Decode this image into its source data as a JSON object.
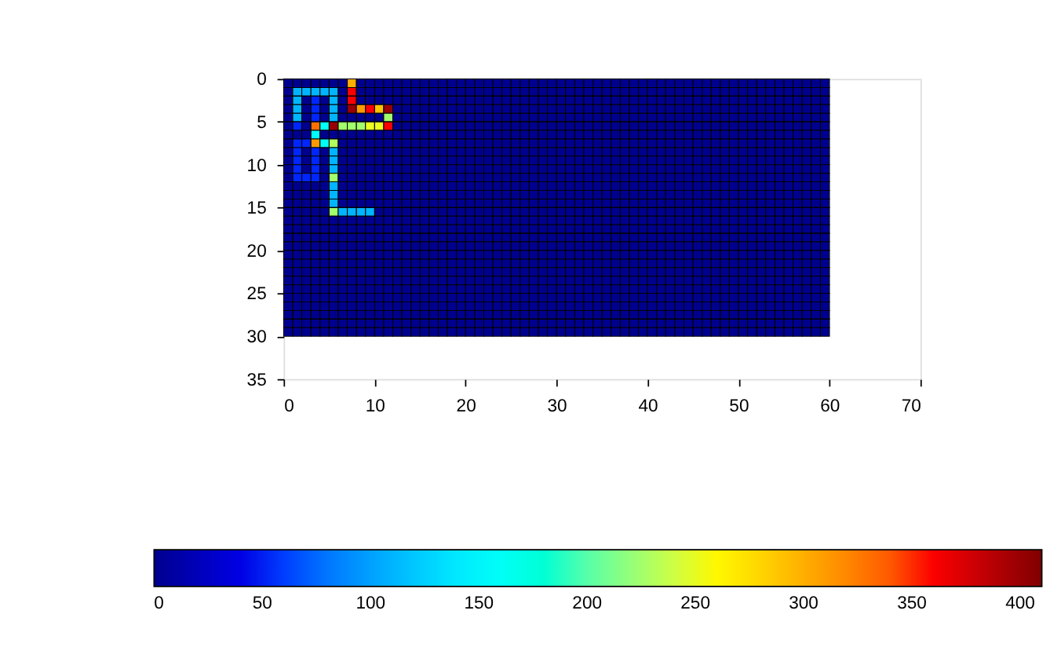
{
  "chart_data": {
    "type": "heatmap",
    "x": [
      0.5,
      1.5,
      2.5,
      3.5,
      4.5,
      5.5,
      6.5,
      7.5,
      8.5,
      9.5,
      10.5,
      11.5,
      12.5,
      13.5,
      14.5,
      15.5,
      16.5,
      17.5,
      18.5,
      19.5,
      20.5,
      21.5,
      22.5,
      23.5,
      24.5,
      25.5,
      26.5,
      27.5,
      28.5,
      29.5,
      30.5,
      31.5,
      32.5,
      33.5,
      34.5,
      35.5,
      36.5,
      37.5,
      38.5,
      39.5,
      40.5,
      41.5,
      42.5,
      43.5,
      44.5,
      45.5,
      46.5,
      47.5,
      48.5,
      49.5,
      50.5,
      51.5,
      52.5,
      53.5,
      54.5,
      55.5,
      56.5,
      57.5,
      58.5,
      59.5
    ],
    "y": [
      0.5,
      1.5,
      2.5,
      3.5,
      4.5,
      5.5,
      6.5,
      7.5,
      8.5,
      9.5,
      10.5,
      11.5,
      12.5,
      13.5,
      14.5,
      15.5,
      16.5,
      17.5,
      18.5,
      19.5,
      20.5,
      21.5,
      22.5,
      23.5,
      24.5,
      25.5,
      26.5,
      27.5,
      28.5,
      29.5
    ],
    "cells": [
      [
        0,
        0,
        0,
        0,
        0,
        0,
        0,
        300,
        0,
        0,
        0,
        0,
        0,
        0,
        0,
        0,
        0,
        0,
        0,
        0,
        0,
        0,
        0,
        0,
        0,
        0,
        0,
        0,
        0,
        0,
        0,
        0,
        0,
        0,
        0,
        0,
        0,
        0,
        0,
        0,
        0,
        0,
        0,
        0,
        0,
        0,
        0,
        0,
        0,
        0,
        0,
        0,
        0,
        0,
        0,
        0,
        0,
        0,
        0,
        0
      ],
      [
        0,
        110,
        110,
        110,
        110,
        110,
        0,
        360,
        0,
        0,
        0,
        0,
        0,
        0,
        0,
        0,
        0,
        0,
        0,
        0,
        0,
        0,
        0,
        0,
        0,
        0,
        0,
        0,
        0,
        0,
        0,
        0,
        0,
        0,
        0,
        0,
        0,
        0,
        0,
        0,
        0,
        0,
        0,
        0,
        0,
        0,
        0,
        0,
        0,
        0,
        0,
        0,
        0,
        0,
        0,
        0,
        0,
        0,
        0,
        0
      ],
      [
        0,
        110,
        0,
        55,
        0,
        110,
        0,
        360,
        0,
        0,
        0,
        0,
        0,
        0,
        0,
        0,
        0,
        0,
        0,
        0,
        0,
        0,
        0,
        0,
        0,
        0,
        0,
        0,
        0,
        0,
        0,
        0,
        0,
        0,
        0,
        0,
        0,
        0,
        0,
        0,
        0,
        0,
        0,
        0,
        0,
        0,
        0,
        0,
        0,
        0,
        0,
        0,
        0,
        0,
        0,
        0,
        0,
        0,
        0,
        0
      ],
      [
        0,
        110,
        0,
        55,
        0,
        110,
        0,
        400,
        310,
        360,
        290,
        400,
        0,
        0,
        0,
        0,
        0,
        0,
        0,
        0,
        0,
        0,
        0,
        0,
        0,
        0,
        0,
        0,
        0,
        0,
        0,
        0,
        0,
        0,
        0,
        0,
        0,
        0,
        0,
        0,
        0,
        0,
        0,
        0,
        0,
        0,
        0,
        0,
        0,
        0,
        0,
        0,
        0,
        0,
        0,
        0,
        0,
        0,
        0,
        0
      ],
      [
        0,
        110,
        0,
        55,
        0,
        110,
        0,
        0,
        0,
        0,
        0,
        225,
        0,
        0,
        0,
        0,
        0,
        0,
        0,
        0,
        0,
        0,
        0,
        0,
        0,
        0,
        0,
        0,
        0,
        0,
        0,
        0,
        0,
        0,
        0,
        0,
        0,
        0,
        0,
        0,
        0,
        0,
        0,
        0,
        0,
        0,
        0,
        0,
        0,
        0,
        0,
        0,
        0,
        0,
        0,
        0,
        0,
        0,
        0,
        0
      ],
      [
        0,
        55,
        0,
        330,
        160,
        400,
        225,
        225,
        225,
        250,
        250,
        360,
        0,
        0,
        0,
        0,
        0,
        0,
        0,
        0,
        0,
        0,
        0,
        0,
        0,
        0,
        0,
        0,
        0,
        0,
        0,
        0,
        0,
        0,
        0,
        0,
        0,
        0,
        0,
        0,
        0,
        0,
        0,
        0,
        0,
        0,
        0,
        0,
        0,
        0,
        0,
        0,
        0,
        0,
        0,
        0,
        0,
        0,
        0,
        0
      ],
      [
        0,
        0,
        0,
        160,
        0,
        0,
        0,
        0,
        0,
        0,
        0,
        0,
        0,
        0,
        0,
        0,
        0,
        0,
        0,
        0,
        0,
        0,
        0,
        0,
        0,
        0,
        0,
        0,
        0,
        0,
        0,
        0,
        0,
        0,
        0,
        0,
        0,
        0,
        0,
        0,
        0,
        0,
        0,
        0,
        0,
        0,
        0,
        0,
        0,
        0,
        0,
        0,
        0,
        0,
        0,
        0,
        0,
        0,
        0,
        0
      ],
      [
        0,
        55,
        55,
        310,
        160,
        230,
        0,
        0,
        0,
        0,
        0,
        0,
        0,
        0,
        0,
        0,
        0,
        0,
        0,
        0,
        0,
        0,
        0,
        0,
        0,
        0,
        0,
        0,
        0,
        0,
        0,
        0,
        0,
        0,
        0,
        0,
        0,
        0,
        0,
        0,
        0,
        0,
        0,
        0,
        0,
        0,
        0,
        0,
        0,
        0,
        0,
        0,
        0,
        0,
        0,
        0,
        0,
        0,
        0,
        0
      ],
      [
        0,
        55,
        0,
        55,
        0,
        110,
        0,
        0,
        0,
        0,
        0,
        0,
        0,
        0,
        0,
        0,
        0,
        0,
        0,
        0,
        0,
        0,
        0,
        0,
        0,
        0,
        0,
        0,
        0,
        0,
        0,
        0,
        0,
        0,
        0,
        0,
        0,
        0,
        0,
        0,
        0,
        0,
        0,
        0,
        0,
        0,
        0,
        0,
        0,
        0,
        0,
        0,
        0,
        0,
        0,
        0,
        0,
        0,
        0,
        0
      ],
      [
        0,
        55,
        0,
        55,
        0,
        110,
        0,
        0,
        0,
        0,
        0,
        0,
        0,
        0,
        0,
        0,
        0,
        0,
        0,
        0,
        0,
        0,
        0,
        0,
        0,
        0,
        0,
        0,
        0,
        0,
        0,
        0,
        0,
        0,
        0,
        0,
        0,
        0,
        0,
        0,
        0,
        0,
        0,
        0,
        0,
        0,
        0,
        0,
        0,
        0,
        0,
        0,
        0,
        0,
        0,
        0,
        0,
        0,
        0,
        0
      ],
      [
        0,
        55,
        0,
        55,
        0,
        110,
        0,
        0,
        0,
        0,
        0,
        0,
        0,
        0,
        0,
        0,
        0,
        0,
        0,
        0,
        0,
        0,
        0,
        0,
        0,
        0,
        0,
        0,
        0,
        0,
        0,
        0,
        0,
        0,
        0,
        0,
        0,
        0,
        0,
        0,
        0,
        0,
        0,
        0,
        0,
        0,
        0,
        0,
        0,
        0,
        0,
        0,
        0,
        0,
        0,
        0,
        0,
        0,
        0,
        0
      ],
      [
        0,
        55,
        55,
        55,
        0,
        225,
        0,
        0,
        0,
        0,
        0,
        0,
        0,
        0,
        0,
        0,
        0,
        0,
        0,
        0,
        0,
        0,
        0,
        0,
        0,
        0,
        0,
        0,
        0,
        0,
        0,
        0,
        0,
        0,
        0,
        0,
        0,
        0,
        0,
        0,
        0,
        0,
        0,
        0,
        0,
        0,
        0,
        0,
        0,
        0,
        0,
        0,
        0,
        0,
        0,
        0,
        0,
        0,
        0,
        0
      ],
      [
        0,
        0,
        0,
        0,
        0,
        110,
        0,
        0,
        0,
        0,
        0,
        0,
        0,
        0,
        0,
        0,
        0,
        0,
        0,
        0,
        0,
        0,
        0,
        0,
        0,
        0,
        0,
        0,
        0,
        0,
        0,
        0,
        0,
        0,
        0,
        0,
        0,
        0,
        0,
        0,
        0,
        0,
        0,
        0,
        0,
        0,
        0,
        0,
        0,
        0,
        0,
        0,
        0,
        0,
        0,
        0,
        0,
        0,
        0,
        0
      ],
      [
        0,
        0,
        0,
        0,
        0,
        110,
        0,
        0,
        0,
        0,
        0,
        0,
        0,
        0,
        0,
        0,
        0,
        0,
        0,
        0,
        0,
        0,
        0,
        0,
        0,
        0,
        0,
        0,
        0,
        0,
        0,
        0,
        0,
        0,
        0,
        0,
        0,
        0,
        0,
        0,
        0,
        0,
        0,
        0,
        0,
        0,
        0,
        0,
        0,
        0,
        0,
        0,
        0,
        0,
        0,
        0,
        0,
        0,
        0,
        0
      ],
      [
        0,
        0,
        0,
        0,
        0,
        110,
        0,
        0,
        0,
        0,
        0,
        0,
        0,
        0,
        0,
        0,
        0,
        0,
        0,
        0,
        0,
        0,
        0,
        0,
        0,
        0,
        0,
        0,
        0,
        0,
        0,
        0,
        0,
        0,
        0,
        0,
        0,
        0,
        0,
        0,
        0,
        0,
        0,
        0,
        0,
        0,
        0,
        0,
        0,
        0,
        0,
        0,
        0,
        0,
        0,
        0,
        0,
        0,
        0,
        0
      ],
      [
        0,
        0,
        0,
        0,
        0,
        225,
        110,
        110,
        110,
        110,
        0,
        0,
        0,
        0,
        0,
        0,
        0,
        0,
        0,
        0,
        0,
        0,
        0,
        0,
        0,
        0,
        0,
        0,
        0,
        0,
        0,
        0,
        0,
        0,
        0,
        0,
        0,
        0,
        0,
        0,
        0,
        0,
        0,
        0,
        0,
        0,
        0,
        0,
        0,
        0,
        0,
        0,
        0,
        0,
        0,
        0,
        0,
        0,
        0,
        0
      ],
      [
        0,
        0,
        0,
        0,
        0,
        0,
        0,
        0,
        0,
        0,
        0,
        0,
        0,
        0,
        0,
        0,
        0,
        0,
        0,
        0,
        0,
        0,
        0,
        0,
        0,
        0,
        0,
        0,
        0,
        0,
        0,
        0,
        0,
        0,
        0,
        0,
        0,
        0,
        0,
        0,
        0,
        0,
        0,
        0,
        0,
        0,
        0,
        0,
        0,
        0,
        0,
        0,
        0,
        0,
        0,
        0,
        0,
        0,
        0,
        0
      ],
      [
        0,
        0,
        0,
        0,
        0,
        0,
        0,
        0,
        0,
        0,
        0,
        0,
        0,
        0,
        0,
        0,
        0,
        0,
        0,
        0,
        0,
        0,
        0,
        0,
        0,
        0,
        0,
        0,
        0,
        0,
        0,
        0,
        0,
        0,
        0,
        0,
        0,
        0,
        0,
        0,
        0,
        0,
        0,
        0,
        0,
        0,
        0,
        0,
        0,
        0,
        0,
        0,
        0,
        0,
        0,
        0,
        0,
        0,
        0,
        0
      ],
      [
        0,
        0,
        0,
        0,
        0,
        0,
        0,
        0,
        0,
        0,
        0,
        0,
        0,
        0,
        0,
        0,
        0,
        0,
        0,
        0,
        0,
        0,
        0,
        0,
        0,
        0,
        0,
        0,
        0,
        0,
        0,
        0,
        0,
        0,
        0,
        0,
        0,
        0,
        0,
        0,
        0,
        0,
        0,
        0,
        0,
        0,
        0,
        0,
        0,
        0,
        0,
        0,
        0,
        0,
        0,
        0,
        0,
        0,
        0,
        0
      ],
      [
        0,
        0,
        0,
        0,
        0,
        0,
        0,
        0,
        0,
        0,
        0,
        0,
        0,
        0,
        0,
        0,
        0,
        0,
        0,
        0,
        0,
        0,
        0,
        0,
        0,
        0,
        0,
        0,
        0,
        0,
        0,
        0,
        0,
        0,
        0,
        0,
        0,
        0,
        0,
        0,
        0,
        0,
        0,
        0,
        0,
        0,
        0,
        0,
        0,
        0,
        0,
        0,
        0,
        0,
        0,
        0,
        0,
        0,
        0,
        0
      ],
      [
        0,
        0,
        0,
        0,
        0,
        0,
        0,
        0,
        0,
        0,
        0,
        0,
        0,
        0,
        0,
        0,
        0,
        0,
        0,
        0,
        0,
        0,
        0,
        0,
        0,
        0,
        0,
        0,
        0,
        0,
        0,
        0,
        0,
        0,
        0,
        0,
        0,
        0,
        0,
        0,
        0,
        0,
        0,
        0,
        0,
        0,
        0,
        0,
        0,
        0,
        0,
        0,
        0,
        0,
        0,
        0,
        0,
        0,
        0,
        0
      ],
      [
        0,
        0,
        0,
        0,
        0,
        0,
        0,
        0,
        0,
        0,
        0,
        0,
        0,
        0,
        0,
        0,
        0,
        0,
        0,
        0,
        0,
        0,
        0,
        0,
        0,
        0,
        0,
        0,
        0,
        0,
        0,
        0,
        0,
        0,
        0,
        0,
        0,
        0,
        0,
        0,
        0,
        0,
        0,
        0,
        0,
        0,
        0,
        0,
        0,
        0,
        0,
        0,
        0,
        0,
        0,
        0,
        0,
        0,
        0,
        0
      ],
      [
        0,
        0,
        0,
        0,
        0,
        0,
        0,
        0,
        0,
        0,
        0,
        0,
        0,
        0,
        0,
        0,
        0,
        0,
        0,
        0,
        0,
        0,
        0,
        0,
        0,
        0,
        0,
        0,
        0,
        0,
        0,
        0,
        0,
        0,
        0,
        0,
        0,
        0,
        0,
        0,
        0,
        0,
        0,
        0,
        0,
        0,
        0,
        0,
        0,
        0,
        0,
        0,
        0,
        0,
        0,
        0,
        0,
        0,
        0,
        0
      ],
      [
        0,
        0,
        0,
        0,
        0,
        0,
        0,
        0,
        0,
        0,
        0,
        0,
        0,
        0,
        0,
        0,
        0,
        0,
        0,
        0,
        0,
        0,
        0,
        0,
        0,
        0,
        0,
        0,
        0,
        0,
        0,
        0,
        0,
        0,
        0,
        0,
        0,
        0,
        0,
        0,
        0,
        0,
        0,
        0,
        0,
        0,
        0,
        0,
        0,
        0,
        0,
        0,
        0,
        0,
        0,
        0,
        0,
        0,
        0,
        0
      ],
      [
        0,
        0,
        0,
        0,
        0,
        0,
        0,
        0,
        0,
        0,
        0,
        0,
        0,
        0,
        0,
        0,
        0,
        0,
        0,
        0,
        0,
        0,
        0,
        0,
        0,
        0,
        0,
        0,
        0,
        0,
        0,
        0,
        0,
        0,
        0,
        0,
        0,
        0,
        0,
        0,
        0,
        0,
        0,
        0,
        0,
        0,
        0,
        0,
        0,
        0,
        0,
        0,
        0,
        0,
        0,
        0,
        0,
        0,
        0,
        0
      ],
      [
        0,
        0,
        0,
        0,
        0,
        0,
        0,
        0,
        0,
        0,
        0,
        0,
        0,
        0,
        0,
        0,
        0,
        0,
        0,
        0,
        0,
        0,
        0,
        0,
        0,
        0,
        0,
        0,
        0,
        0,
        0,
        0,
        0,
        0,
        0,
        0,
        0,
        0,
        0,
        0,
        0,
        0,
        0,
        0,
        0,
        0,
        0,
        0,
        0,
        0,
        0,
        0,
        0,
        0,
        0,
        0,
        0,
        0,
        0,
        0
      ],
      [
        0,
        0,
        0,
        0,
        0,
        0,
        0,
        0,
        0,
        0,
        0,
        0,
        0,
        0,
        0,
        0,
        0,
        0,
        0,
        0,
        0,
        0,
        0,
        0,
        0,
        0,
        0,
        0,
        0,
        0,
        0,
        0,
        0,
        0,
        0,
        0,
        0,
        0,
        0,
        0,
        0,
        0,
        0,
        0,
        0,
        0,
        0,
        0,
        0,
        0,
        0,
        0,
        0,
        0,
        0,
        0,
        0,
        0,
        0,
        0
      ],
      [
        0,
        0,
        0,
        0,
        0,
        0,
        0,
        0,
        0,
        0,
        0,
        0,
        0,
        0,
        0,
        0,
        0,
        0,
        0,
        0,
        0,
        0,
        0,
        0,
        0,
        0,
        0,
        0,
        0,
        0,
        0,
        0,
        0,
        0,
        0,
        0,
        0,
        0,
        0,
        0,
        0,
        0,
        0,
        0,
        0,
        0,
        0,
        0,
        0,
        0,
        0,
        0,
        0,
        0,
        0,
        0,
        0,
        0,
        0,
        0
      ],
      [
        0,
        0,
        0,
        0,
        0,
        0,
        0,
        0,
        0,
        0,
        0,
        0,
        0,
        0,
        0,
        0,
        0,
        0,
        0,
        0,
        0,
        0,
        0,
        0,
        0,
        0,
        0,
        0,
        0,
        0,
        0,
        0,
        0,
        0,
        0,
        0,
        0,
        0,
        0,
        0,
        0,
        0,
        0,
        0,
        0,
        0,
        0,
        0,
        0,
        0,
        0,
        0,
        0,
        0,
        0,
        0,
        0,
        0,
        0,
        0
      ],
      [
        0,
        0,
        0,
        0,
        0,
        0,
        0,
        0,
        0,
        0,
        0,
        0,
        0,
        0,
        0,
        0,
        0,
        0,
        0,
        0,
        0,
        0,
        0,
        0,
        0,
        0,
        0,
        0,
        0,
        0,
        0,
        0,
        0,
        0,
        0,
        0,
        0,
        0,
        0,
        0,
        0,
        0,
        0,
        0,
        0,
        0,
        0,
        0,
        0,
        0,
        0,
        0,
        0,
        0,
        0,
        0,
        0,
        0,
        0,
        0
      ]
    ],
    "xlim": [
      0,
      70
    ],
    "xticks": [
      0,
      10,
      20,
      30,
      40,
      50,
      60,
      70
    ],
    "ylim": [
      35,
      0
    ],
    "yticks": [
      0,
      5,
      10,
      15,
      20,
      25,
      30,
      35
    ],
    "clim": [
      0,
      410
    ],
    "cticks": [
      0,
      50,
      100,
      150,
      200,
      250,
      300,
      350,
      400
    ],
    "grid": false
  }
}
